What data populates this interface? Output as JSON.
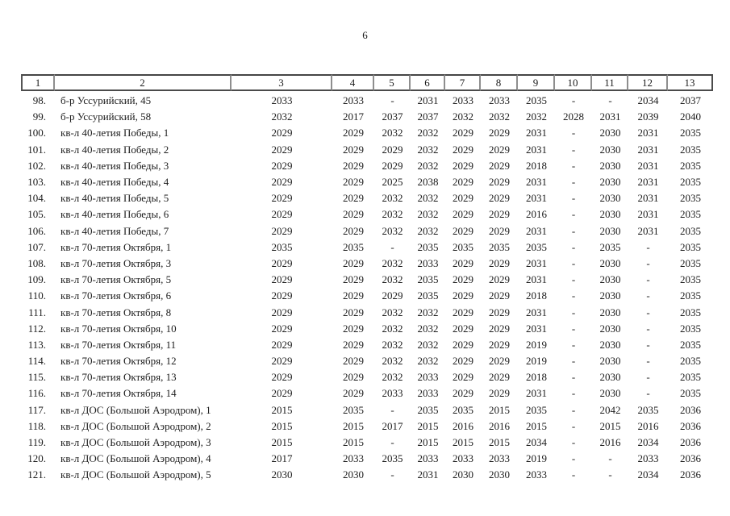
{
  "page": {
    "number": "6"
  },
  "table": {
    "header": [
      "1",
      "2",
      "3",
      "4",
      "5",
      "6",
      "7",
      "8",
      "9",
      "10",
      "11",
      "12",
      "13"
    ],
    "rows": [
      {
        "num": "98.",
        "address": "б-р Уссурийский, 45",
        "values": [
          "2033",
          "2033",
          "-",
          "2031",
          "2033",
          "2033",
          "2035",
          "-",
          "-",
          "2034",
          "2037"
        ]
      },
      {
        "num": "99.",
        "address": "б-р Уссурийский, 58",
        "values": [
          "2032",
          "2017",
          "2037",
          "2037",
          "2032",
          "2032",
          "2032",
          "2028",
          "2031",
          "2039",
          "2040"
        ]
      },
      {
        "num": "100.",
        "address": "кв-л 40-летия Победы, 1",
        "values": [
          "2029",
          "2029",
          "2032",
          "2032",
          "2029",
          "2029",
          "2031",
          "-",
          "2030",
          "2031",
          "2035"
        ]
      },
      {
        "num": "101.",
        "address": "кв-л 40-летия Победы, 2",
        "values": [
          "2029",
          "2029",
          "2029",
          "2032",
          "2029",
          "2029",
          "2031",
          "-",
          "2030",
          "2031",
          "2035"
        ]
      },
      {
        "num": "102.",
        "address": "кв-л 40-летия Победы, 3",
        "values": [
          "2029",
          "2029",
          "2029",
          "2032",
          "2029",
          "2029",
          "2018",
          "-",
          "2030",
          "2031",
          "2035"
        ]
      },
      {
        "num": "103.",
        "address": "кв-л 40-летия Победы, 4",
        "values": [
          "2029",
          "2029",
          "2025",
          "2038",
          "2029",
          "2029",
          "2031",
          "-",
          "2030",
          "2031",
          "2035"
        ]
      },
      {
        "num": "104.",
        "address": "кв-л 40-летия Победы, 5",
        "values": [
          "2029",
          "2029",
          "2032",
          "2032",
          "2029",
          "2029",
          "2031",
          "-",
          "2030",
          "2031",
          "2035"
        ]
      },
      {
        "num": "105.",
        "address": "кв-л 40-летия Победы, 6",
        "values": [
          "2029",
          "2029",
          "2032",
          "2032",
          "2029",
          "2029",
          "2016",
          "-",
          "2030",
          "2031",
          "2035"
        ]
      },
      {
        "num": "106.",
        "address": "кв-л 40-летия Победы, 7",
        "values": [
          "2029",
          "2029",
          "2032",
          "2032",
          "2029",
          "2029",
          "2031",
          "-",
          "2030",
          "2031",
          "2035"
        ]
      },
      {
        "num": "107.",
        "address": "кв-л 70-летия Октября, 1",
        "values": [
          "2035",
          "2035",
          "-",
          "2035",
          "2035",
          "2035",
          "2035",
          "-",
          "2035",
          "-",
          "2035"
        ]
      },
      {
        "num": "108.",
        "address": "кв-л 70-летия Октября, 3",
        "values": [
          "2029",
          "2029",
          "2032",
          "2033",
          "2029",
          "2029",
          "2031",
          "-",
          "2030",
          "-",
          "2035"
        ]
      },
      {
        "num": "109.",
        "address": "кв-л 70-летия Октября, 5",
        "values": [
          "2029",
          "2029",
          "2032",
          "2035",
          "2029",
          "2029",
          "2031",
          "-",
          "2030",
          "-",
          "2035"
        ]
      },
      {
        "num": "110.",
        "address": "кв-л 70-летия Октября, 6",
        "values": [
          "2029",
          "2029",
          "2029",
          "2035",
          "2029",
          "2029",
          "2018",
          "-",
          "2030",
          "-",
          "2035"
        ]
      },
      {
        "num": "111.",
        "address": "кв-л 70-летия Октября, 8",
        "values": [
          "2029",
          "2029",
          "2032",
          "2032",
          "2029",
          "2029",
          "2031",
          "-",
          "2030",
          "-",
          "2035"
        ]
      },
      {
        "num": "112.",
        "address": "кв-л 70-летия Октября, 10",
        "values": [
          "2029",
          "2029",
          "2032",
          "2032",
          "2029",
          "2029",
          "2031",
          "-",
          "2030",
          "-",
          "2035"
        ]
      },
      {
        "num": "113.",
        "address": "кв-л 70-летия Октября, 11",
        "values": [
          "2029",
          "2029",
          "2032",
          "2032",
          "2029",
          "2029",
          "2019",
          "-",
          "2030",
          "-",
          "2035"
        ]
      },
      {
        "num": "114.",
        "address": "кв-л 70-летия Октября, 12",
        "values": [
          "2029",
          "2029",
          "2032",
          "2032",
          "2029",
          "2029",
          "2019",
          "-",
          "2030",
          "-",
          "2035"
        ]
      },
      {
        "num": "115.",
        "address": "кв-л 70-летия Октября, 13",
        "values": [
          "2029",
          "2029",
          "2032",
          "2033",
          "2029",
          "2029",
          "2018",
          "-",
          "2030",
          "-",
          "2035"
        ]
      },
      {
        "num": "116.",
        "address": "кв-л 70-летия Октября, 14",
        "values": [
          "2029",
          "2029",
          "2033",
          "2033",
          "2029",
          "2029",
          "2031",
          "-",
          "2030",
          "-",
          "2035"
        ]
      },
      {
        "num": "117.",
        "address": "кв-л ДОС (Большой Аэродром), 1",
        "values": [
          "2015",
          "2035",
          "-",
          "2035",
          "2035",
          "2015",
          "2035",
          "-",
          "2042",
          "2035",
          "2036"
        ]
      },
      {
        "num": "118.",
        "address": "кв-л ДОС (Большой Аэродром), 2",
        "values": [
          "2015",
          "2015",
          "2017",
          "2015",
          "2016",
          "2016",
          "2015",
          "-",
          "2015",
          "2016",
          "2036"
        ]
      },
      {
        "num": "119.",
        "address": "кв-л ДОС (Большой Аэродром), 3",
        "values": [
          "2015",
          "2015",
          "-",
          "2015",
          "2015",
          "2015",
          "2034",
          "-",
          "2016",
          "2034",
          "2036"
        ]
      },
      {
        "num": "120.",
        "address": "кв-л ДОС (Большой Аэродром), 4",
        "values": [
          "2017",
          "2033",
          "2035",
          "2033",
          "2033",
          "2033",
          "2019",
          "-",
          "-",
          "2033",
          "2036"
        ]
      },
      {
        "num": "121.",
        "address": "кв-л ДОС (Большой Аэродром), 5",
        "values": [
          "2030",
          "2030",
          "-",
          "2031",
          "2030",
          "2030",
          "2033",
          "-",
          "-",
          "2034",
          "2036"
        ]
      }
    ]
  }
}
